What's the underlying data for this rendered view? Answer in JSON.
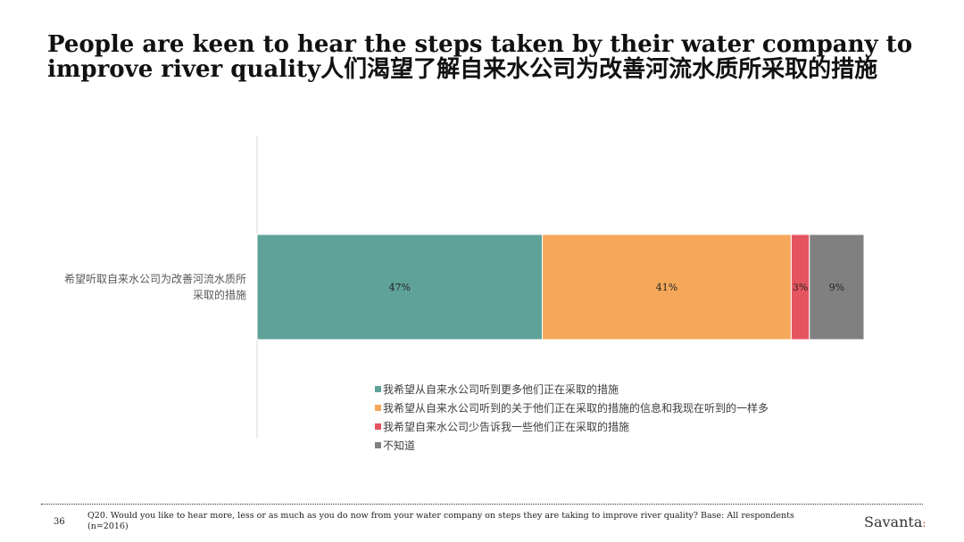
{
  "header": {
    "title": "People are keen to hear the steps taken by their water company to improve river quality人们渴望了解自来水公司为改善河流水质所采取的措施"
  },
  "chart_data": {
    "type": "bar",
    "orientation": "horizontal",
    "stacked": true,
    "percent_scale": 100,
    "categories": [
      "希望听取自来水公司为改善河流水质所采取的措施"
    ],
    "category_label_lines": [
      "希望听取自来水公司为改善河流水质所",
      "采取的措施"
    ],
    "series": [
      {
        "name": "我希望从自来水公司听到更多他们正在采取的措施",
        "values": [
          47
        ],
        "label": "47%",
        "color": "#5fa29a"
      },
      {
        "name": "我希望从自来水公司听到的关于他们正在采取的措施的信息和我现在听到的一样多",
        "values": [
          41
        ],
        "label": "41%",
        "color": "#f5a85a"
      },
      {
        "name": "我希望自来水公司少告诉我一些他们正在采取的措施",
        "values": [
          3
        ],
        "label": "3%",
        "color": "#e55560"
      },
      {
        "name": "不知道",
        "values": [
          9
        ],
        "label": "9%",
        "color": "#808080"
      }
    ],
    "legend_position": "bottom",
    "grid": false
  },
  "footer": {
    "page_number": "36",
    "note": "Q20. Would you like to hear more, less or as much as you do now from your water company on steps they are taking to improve river quality? Base: All respondents (n=2016)",
    "brand": "Savanta",
    "brand_mark": ":"
  }
}
